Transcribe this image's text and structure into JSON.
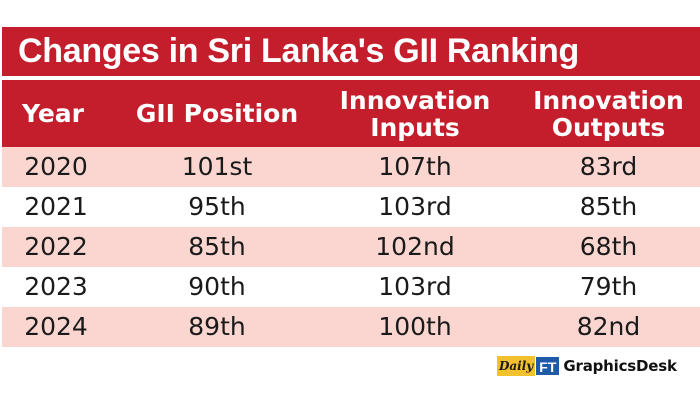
{
  "title": "Changes in Sri Lanka's GII Ranking",
  "header": {
    "year": "Year",
    "gii_position": "GII Position",
    "innovation_inputs": [
      "Innovation",
      "Inputs"
    ],
    "innovation_outputs": [
      "Innovation",
      "Outputs"
    ]
  },
  "rows": [
    {
      "year": "2020",
      "gii_position": "101st",
      "innovation_inputs": "107th",
      "innovation_outputs": "83rd"
    },
    {
      "year": "2021",
      "gii_position": "95th",
      "innovation_inputs": "103rd",
      "innovation_outputs": "85th"
    },
    {
      "year": "2022",
      "gii_position": "85th",
      "innovation_inputs": "102nd",
      "innovation_outputs": "68th"
    },
    {
      "year": "2023",
      "gii_position": "90th",
      "innovation_inputs": "103rd",
      "innovation_outputs": "79th"
    },
    {
      "year": "2024",
      "gii_position": "89th",
      "innovation_inputs": "100th",
      "innovation_outputs": "82nd"
    }
  ],
  "credit": {
    "logo_daily": "Daily",
    "logo_ft": "FT",
    "text": "GraphicsDesk"
  },
  "colors": {
    "header_red": "#c41d2b",
    "row_shade": "#fbd6d0",
    "logo_yellow": "#f2c12e",
    "logo_blue": "#1e5aa8"
  },
  "chart_data": {
    "type": "table",
    "title": "Changes in Sri Lanka's GII Ranking",
    "columns": [
      "Year",
      "GII Position",
      "Innovation Inputs",
      "Innovation Outputs"
    ],
    "rows": [
      [
        "2020",
        "101st",
        "107th",
        "83rd"
      ],
      [
        "2021",
        "95th",
        "103rd",
        "85th"
      ],
      [
        "2022",
        "85th",
        "102nd",
        "68th"
      ],
      [
        "2023",
        "90th",
        "103rd",
        "79th"
      ],
      [
        "2024",
        "89th",
        "100th",
        "82nd"
      ]
    ],
    "row_shading": "alternating"
  }
}
